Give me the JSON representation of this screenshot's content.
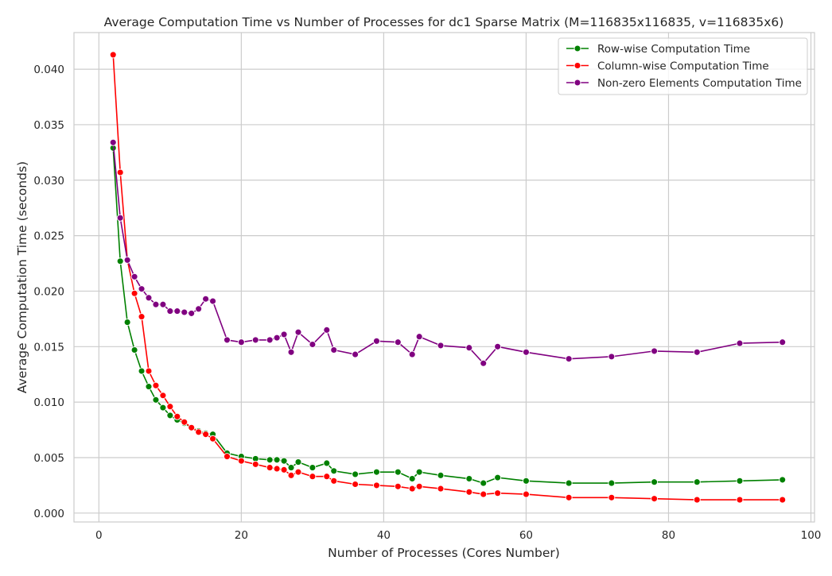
{
  "chart_data": {
    "type": "line",
    "title": "Average Computation Time vs Number of Processes for dc1 Sparse Matrix (M=116835x116835, v=116835x6)",
    "xlabel": "Number of Processes (Cores Number)",
    "ylabel": "Average Computation Time (seconds)",
    "xlim": [
      -3.5,
      100.5
    ],
    "ylim": [
      -0.0008,
      0.0433
    ],
    "xticks": [
      0,
      20,
      40,
      60,
      80,
      100
    ],
    "xtick_labels": [
      "0",
      "20",
      "40",
      "60",
      "80",
      "100"
    ],
    "yticks": [
      0.0,
      0.005,
      0.01,
      0.015,
      0.02,
      0.025,
      0.03,
      0.035,
      0.04
    ],
    "ytick_labels": [
      "0.000",
      "0.005",
      "0.010",
      "0.015",
      "0.020",
      "0.025",
      "0.030",
      "0.035",
      "0.040"
    ],
    "grid": true,
    "legend_position": "top-right",
    "x": [
      2,
      3,
      4,
      5,
      6,
      7,
      8,
      9,
      10,
      11,
      12,
      13,
      14,
      15,
      16,
      18,
      20,
      22,
      24,
      25,
      26,
      27,
      28,
      30,
      32,
      33,
      36,
      39,
      42,
      44,
      45,
      48,
      52,
      54,
      56,
      60,
      66,
      72,
      78,
      84,
      90,
      96
    ],
    "series": [
      {
        "name": "Row-wise Computation Time",
        "color": "#008000",
        "values": [
          0.0329,
          0.0227,
          0.0172,
          0.0147,
          0.0128,
          0.0114,
          0.0102,
          0.0095,
          0.0088,
          0.0084,
          0.0081,
          0.0077,
          0.0074,
          0.0072,
          0.0071,
          0.0054,
          0.0051,
          0.0049,
          0.0048,
          0.0048,
          0.0047,
          0.0041,
          0.0046,
          0.0041,
          0.0045,
          0.0038,
          0.0035,
          0.0037,
          0.0037,
          0.0031,
          0.0037,
          0.0034,
          0.0031,
          0.0027,
          0.0032,
          0.0029,
          0.0027,
          0.0027,
          0.0028,
          0.0028,
          0.0029,
          0.003
        ]
      },
      {
        "name": "Column-wise Computation Time",
        "color": "#ff0000",
        "values": [
          0.0413,
          0.0307,
          0.0228,
          0.0198,
          0.0177,
          0.0128,
          0.0115,
          0.0106,
          0.0096,
          0.0087,
          0.0082,
          0.0077,
          0.0073,
          0.0071,
          0.0067,
          0.0051,
          0.0047,
          0.0044,
          0.0041,
          0.004,
          0.0039,
          0.0034,
          0.0037,
          0.0033,
          0.0033,
          0.0029,
          0.0026,
          0.0025,
          0.0024,
          0.0022,
          0.0024,
          0.0022,
          0.0019,
          0.0017,
          0.0018,
          0.0017,
          0.0014,
          0.0014,
          0.0013,
          0.0012,
          0.0012,
          0.0012
        ]
      },
      {
        "name": "Non-zero Elements Computation Time",
        "color": "#800080",
        "values": [
          0.0334,
          0.0266,
          0.0228,
          0.0213,
          0.0202,
          0.0194,
          0.0188,
          0.0188,
          0.0182,
          0.0182,
          0.0181,
          0.018,
          0.0184,
          0.0193,
          0.0191,
          0.0156,
          0.0154,
          0.0156,
          0.0156,
          0.0158,
          0.0161,
          0.0145,
          0.0163,
          0.0152,
          0.0165,
          0.0147,
          0.0143,
          0.0155,
          0.0154,
          0.0143,
          0.0159,
          0.0151,
          0.0149,
          0.0135,
          0.015,
          0.0145,
          0.0139,
          0.0141,
          0.0146,
          0.0145,
          0.0153,
          0.0154
        ]
      }
    ]
  }
}
